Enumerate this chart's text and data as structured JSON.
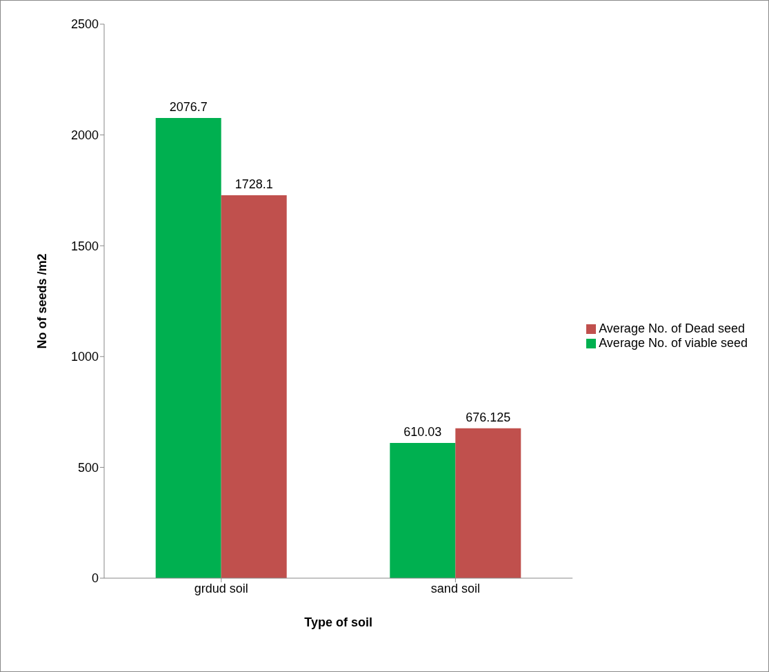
{
  "chart_data": {
    "type": "bar",
    "xlabel": "Type of soil",
    "ylabel": "No of seeds /m2",
    "categories": [
      "grdud soil",
      "sand soil"
    ],
    "series": [
      {
        "name": "Average No. of viable seed",
        "color": "#00b050",
        "values": [
          2076.7,
          610.03
        ]
      },
      {
        "name": "Average No. of Dead seed",
        "color": "#c0504d",
        "values": [
          1728.1,
          676.125
        ]
      }
    ],
    "ylim": [
      0,
      2500
    ],
    "yticks": [
      0,
      500,
      1000,
      1500,
      2000,
      2500
    ],
    "data_labels": true,
    "grid": false,
    "legend": "right"
  }
}
